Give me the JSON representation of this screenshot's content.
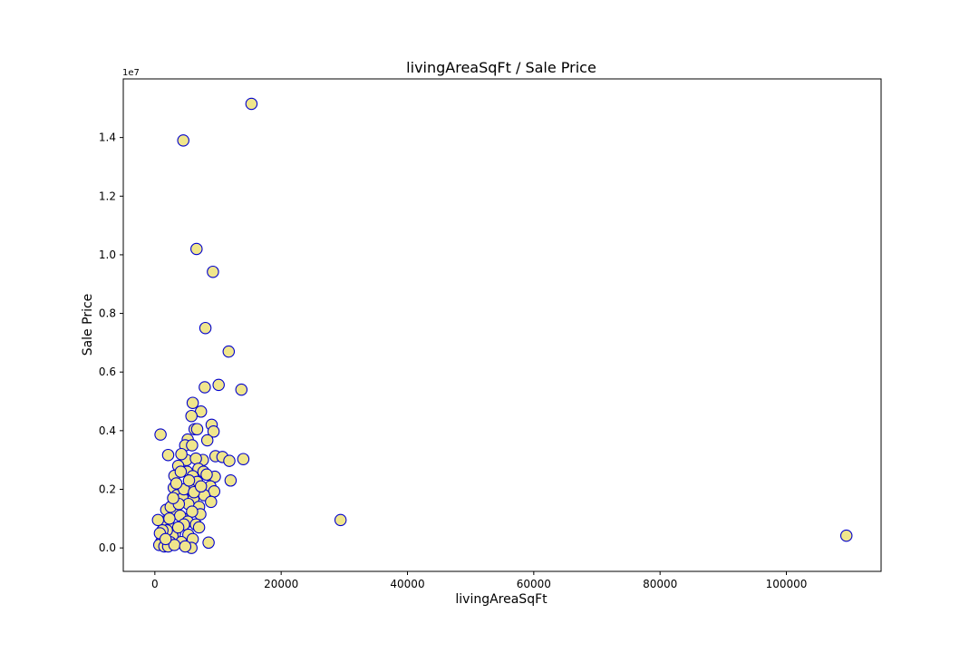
{
  "chart_data": {
    "type": "scatter",
    "title": "livingAreaSqFt / Sale Price",
    "xlabel": "livingAreaSqFt",
    "ylabel": "Sale Price",
    "y_offset_label": "1e7",
    "xlim": [
      -5000,
      115000
    ],
    "ylim": [
      -0.08,
      1.6
    ],
    "xticks": [
      0,
      20000,
      40000,
      60000,
      80000,
      100000
    ],
    "xtick_labels": [
      "0",
      "20000",
      "40000",
      "60000",
      "80000",
      "100000"
    ],
    "yticks": [
      0.0,
      0.2,
      0.4,
      0.6,
      0.8,
      1.0,
      1.2,
      1.4
    ],
    "ytick_labels": [
      "0.0",
      "0.2",
      "0.4",
      "0.6",
      "0.8",
      "1.0",
      "1.2",
      "1.4"
    ],
    "grid": false,
    "marker_fill": "#f0e68c",
    "marker_edge": "#0000cd",
    "points": [
      [
        15300,
        1.515
      ],
      [
        4500,
        1.39
      ],
      [
        6600,
        1.02
      ],
      [
        9200,
        0.942
      ],
      [
        8000,
        0.75
      ],
      [
        11700,
        0.67
      ],
      [
        10100,
        0.556
      ],
      [
        13700,
        0.54
      ],
      [
        7900,
        0.548
      ],
      [
        6000,
        0.495
      ],
      [
        7300,
        0.465
      ],
      [
        5800,
        0.45
      ],
      [
        9000,
        0.42
      ],
      [
        6300,
        0.405
      ],
      [
        9300,
        0.397
      ],
      [
        900,
        0.387
      ],
      [
        6700,
        0.405
      ],
      [
        5200,
        0.37
      ],
      [
        8300,
        0.367
      ],
      [
        4800,
        0.35
      ],
      [
        5900,
        0.35
      ],
      [
        2100,
        0.317
      ],
      [
        9600,
        0.313
      ],
      [
        10700,
        0.31
      ],
      [
        14000,
        0.303
      ],
      [
        11800,
        0.297
      ],
      [
        5000,
        0.3
      ],
      [
        7600,
        0.3
      ],
      [
        6500,
        0.305
      ],
      [
        4200,
        0.32
      ],
      [
        6900,
        0.27
      ],
      [
        3700,
        0.28
      ],
      [
        5100,
        0.26
      ],
      [
        7700,
        0.26
      ],
      [
        9500,
        0.243
      ],
      [
        6000,
        0.245
      ],
      [
        3100,
        0.246
      ],
      [
        12000,
        0.23
      ],
      [
        6700,
        0.225
      ],
      [
        8800,
        0.21
      ],
      [
        5600,
        0.2
      ],
      [
        3000,
        0.205
      ],
      [
        9400,
        0.193
      ],
      [
        7800,
        0.18
      ],
      [
        3500,
        0.18
      ],
      [
        4400,
        0.17
      ],
      [
        6100,
        0.166
      ],
      [
        8900,
        0.157
      ],
      [
        5300,
        0.15
      ],
      [
        7000,
        0.14
      ],
      [
        2700,
        0.12
      ],
      [
        3300,
        0.13
      ],
      [
        7200,
        0.115
      ],
      [
        5900,
        0.124
      ],
      [
        4500,
        0.1
      ],
      [
        1800,
        0.13
      ],
      [
        2500,
        0.14
      ],
      [
        4000,
        0.11
      ],
      [
        5200,
        0.09
      ],
      [
        6500,
        0.08
      ],
      [
        7000,
        0.07
      ],
      [
        4600,
        0.08
      ],
      [
        2100,
        0.08
      ],
      [
        1500,
        0.09
      ],
      [
        500,
        0.095
      ],
      [
        3200,
        0.05
      ],
      [
        2800,
        0.04
      ],
      [
        1200,
        0.035
      ],
      [
        1900,
        0.06
      ],
      [
        3700,
        0.07
      ],
      [
        5300,
        0.045
      ],
      [
        6000,
        0.03
      ],
      [
        4200,
        0.02
      ],
      [
        2400,
        0.02
      ],
      [
        1000,
        0.02
      ],
      [
        700,
        0.01
      ],
      [
        1500,
        0.005
      ],
      [
        2100,
        0.005
      ],
      [
        3100,
        0.01
      ],
      [
        5800,
        0.0
      ],
      [
        4800,
        0.005
      ],
      [
        8500,
        0.018
      ],
      [
        1200,
        0.06
      ],
      [
        2300,
        0.1
      ],
      [
        3800,
        0.15
      ],
      [
        4600,
        0.2
      ],
      [
        5400,
        0.23
      ],
      [
        2900,
        0.17
      ],
      [
        3400,
        0.22
      ],
      [
        4100,
        0.26
      ],
      [
        6200,
        0.19
      ],
      [
        7300,
        0.21
      ],
      [
        8200,
        0.25
      ],
      [
        800,
        0.05
      ],
      [
        1700,
        0.03
      ],
      [
        29400,
        0.095
      ],
      [
        109500,
        0.042
      ]
    ]
  }
}
